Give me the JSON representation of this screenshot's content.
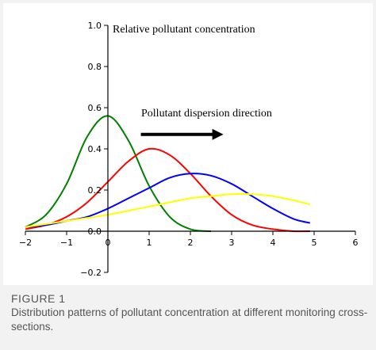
{
  "chart_data": {
    "type": "line",
    "title": "Relative pollutant concentration",
    "annotation": "Pollutant dispersion direction",
    "xlim": [
      -2,
      6
    ],
    "ylim": [
      -0.2,
      1.0
    ],
    "xticks": [
      -2,
      -1,
      0,
      1,
      2,
      3,
      4,
      5,
      6
    ],
    "yticks": [
      1.0,
      0.8,
      0.6,
      0.4,
      0.2,
      0.0,
      -0.2
    ],
    "xtick_labels": [
      "−2",
      "−1",
      "0",
      "1",
      "2",
      "3",
      "4",
      "5",
      "6"
    ],
    "ytick_labels": [
      "1.0",
      "0.8",
      "0.6",
      "0.4",
      "0.2",
      "0.0",
      "−0.2"
    ],
    "grid": false,
    "series": [
      {
        "color": "#008000",
        "x": [
          -2.0,
          -1.5,
          -1.0,
          -0.5,
          0.0,
          0.5,
          1.0,
          1.5,
          2.0,
          2.5
        ],
        "y": [
          0.02,
          0.08,
          0.23,
          0.46,
          0.56,
          0.44,
          0.22,
          0.07,
          0.01,
          0.0
        ]
      },
      {
        "color": "#ff0000",
        "x": [
          -2.0,
          -1.5,
          -1.0,
          -0.5,
          0.0,
          0.5,
          1.0,
          1.5,
          2.0,
          2.5,
          3.0,
          3.5,
          4.0,
          4.5,
          4.9
        ],
        "y": [
          0.01,
          0.03,
          0.07,
          0.14,
          0.24,
          0.34,
          0.4,
          0.37,
          0.28,
          0.17,
          0.08,
          0.03,
          0.01,
          0.0,
          0.0
        ]
      },
      {
        "color": "#0000ff",
        "x": [
          -2.0,
          -1.5,
          -1.0,
          -0.5,
          0.0,
          0.5,
          1.0,
          1.5,
          2.0,
          2.5,
          3.0,
          3.5,
          4.0,
          4.5,
          4.9
        ],
        "y": [
          0.02,
          0.03,
          0.05,
          0.07,
          0.11,
          0.16,
          0.21,
          0.26,
          0.28,
          0.27,
          0.23,
          0.17,
          0.11,
          0.06,
          0.04
        ]
      },
      {
        "color": "#ffff00",
        "x": [
          -2.0,
          -1.0,
          0.0,
          1.0,
          2.0,
          2.5,
          3.0,
          3.5,
          4.0,
          4.5,
          4.9
        ],
        "y": [
          0.02,
          0.05,
          0.08,
          0.12,
          0.16,
          0.17,
          0.18,
          0.18,
          0.17,
          0.15,
          0.13
        ]
      }
    ],
    "arrow": {
      "x_start": 0.8,
      "x_end": 2.8,
      "y": 0.47
    }
  },
  "caption": {
    "label": "FIGURE 1",
    "text": "Distribution patterns of pollutant concentration at different monitoring cross-sections."
  }
}
